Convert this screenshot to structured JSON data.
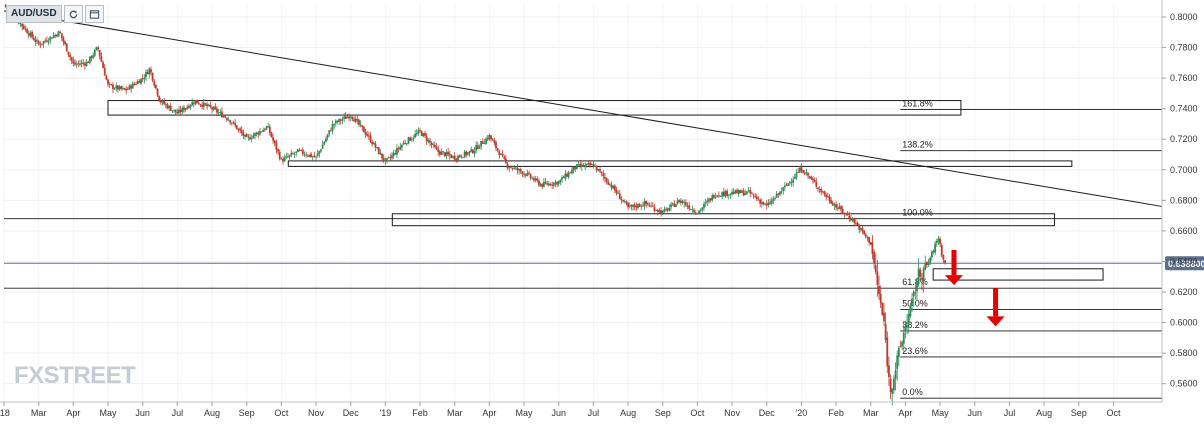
{
  "symbol": "AUD/USD",
  "toolbar": {
    "refresh_icon": "refresh-icon",
    "fullscreen_icon": "fullscreen-icon"
  },
  "brand": "FXSTREET",
  "current_price_label": "0.638800",
  "colors": {
    "up": "#2e8b57",
    "down": "#c0392b",
    "arrow": "#e60000",
    "lines": "#1a1a1a",
    "price_line": "#5a6f8c",
    "price_tag": "#5a6f8c"
  },
  "chart_data": {
    "type": "candlestick",
    "title": "AUD/USD",
    "y_range": [
      0.548,
      0.8085
    ],
    "y_ticks": [
      0.56,
      0.58,
      0.6,
      0.62,
      0.64,
      0.66,
      0.68,
      0.7,
      0.72,
      0.74,
      0.76,
      0.78,
      0.8
    ],
    "y_tick_labels": [
      "0.5600",
      "0.5800",
      "0.6000",
      "0.6200",
      "0.6400",
      "0.6600",
      "0.6800",
      "0.7000",
      "0.7200",
      "0.7400",
      "0.7600",
      "0.7800",
      "0.8000"
    ],
    "x_range_months": [
      0,
      33.4
    ],
    "x_ticks": [
      {
        "label": "'18",
        "m": 0
      },
      {
        "label": "Mar",
        "m": 1
      },
      {
        "label": "Apr",
        "m": 2
      },
      {
        "label": "May",
        "m": 3
      },
      {
        "label": "Jun",
        "m": 4
      },
      {
        "label": "Jul",
        "m": 5
      },
      {
        "label": "Aug",
        "m": 6
      },
      {
        "label": "Sep",
        "m": 7
      },
      {
        "label": "Oct",
        "m": 8
      },
      {
        "label": "Nov",
        "m": 9
      },
      {
        "label": "Dec",
        "m": 10
      },
      {
        "label": "'19",
        "m": 11
      },
      {
        "label": "Feb",
        "m": 12
      },
      {
        "label": "Mar",
        "m": 13
      },
      {
        "label": "Apr",
        "m": 14
      },
      {
        "label": "May",
        "m": 15
      },
      {
        "label": "Jun",
        "m": 16
      },
      {
        "label": "Jul",
        "m": 17
      },
      {
        "label": "Aug",
        "m": 18
      },
      {
        "label": "Sep",
        "m": 19
      },
      {
        "label": "Oct",
        "m": 20
      },
      {
        "label": "Nov",
        "m": 21
      },
      {
        "label": "Dec",
        "m": 22
      },
      {
        "label": "'20",
        "m": 23
      },
      {
        "label": "Feb",
        "m": 24
      },
      {
        "label": "Mar",
        "m": 25
      },
      {
        "label": "Apr",
        "m": 26
      },
      {
        "label": "May",
        "m": 27
      },
      {
        "label": "Jun",
        "m": 28
      },
      {
        "label": "Jul",
        "m": 29
      },
      {
        "label": "Aug",
        "m": 30
      },
      {
        "label": "Sep",
        "m": 31
      },
      {
        "label": "Oct",
        "m": 32
      }
    ],
    "price_path": [
      [
        0.0,
        0.808
      ],
      [
        0.5,
        0.795
      ],
      [
        1.0,
        0.782
      ],
      [
        1.6,
        0.79
      ],
      [
        2.0,
        0.769
      ],
      [
        2.4,
        0.77
      ],
      [
        2.7,
        0.78
      ],
      [
        3.0,
        0.755
      ],
      [
        3.5,
        0.752
      ],
      [
        4.0,
        0.76
      ],
      [
        4.2,
        0.766
      ],
      [
        4.5,
        0.745
      ],
      [
        5.0,
        0.737
      ],
      [
        5.5,
        0.745
      ],
      [
        6.0,
        0.74
      ],
      [
        6.5,
        0.733
      ],
      [
        7.0,
        0.72
      ],
      [
        7.6,
        0.728
      ],
      [
        8.0,
        0.706
      ],
      [
        8.5,
        0.712
      ],
      [
        9.0,
        0.708
      ],
      [
        9.5,
        0.73
      ],
      [
        10.0,
        0.736
      ],
      [
        10.5,
        0.722
      ],
      [
        11.0,
        0.705
      ],
      [
        11.15,
        0.708
      ],
      [
        11.5,
        0.717
      ],
      [
        12.0,
        0.725
      ],
      [
        12.5,
        0.712
      ],
      [
        13.0,
        0.708
      ],
      [
        13.5,
        0.712
      ],
      [
        14.0,
        0.722
      ],
      [
        14.5,
        0.703
      ],
      [
        15.0,
        0.698
      ],
      [
        15.5,
        0.69
      ],
      [
        16.0,
        0.692
      ],
      [
        16.5,
        0.702
      ],
      [
        17.0,
        0.703
      ],
      [
        17.5,
        0.69
      ],
      [
        18.0,
        0.675
      ],
      [
        18.5,
        0.678
      ],
      [
        19.0,
        0.672
      ],
      [
        19.5,
        0.68
      ],
      [
        20.0,
        0.672
      ],
      [
        20.5,
        0.684
      ],
      [
        21.0,
        0.685
      ],
      [
        21.5,
        0.685
      ],
      [
        22.0,
        0.676
      ],
      [
        22.5,
        0.688
      ],
      [
        23.0,
        0.701
      ],
      [
        23.5,
        0.688
      ],
      [
        24.0,
        0.676
      ],
      [
        24.5,
        0.667
      ],
      [
        25.0,
        0.652
      ],
      [
        25.15,
        0.63
      ],
      [
        25.4,
        0.596
      ],
      [
        25.55,
        0.555
      ],
      [
        25.8,
        0.578
      ],
      [
        26.0,
        0.598
      ],
      [
        26.2,
        0.612
      ],
      [
        26.35,
        0.63
      ],
      [
        26.6,
        0.636
      ],
      [
        26.8,
        0.647
      ],
      [
        26.95,
        0.656
      ],
      [
        27.1,
        0.64
      ],
      [
        27.15,
        0.639
      ]
    ],
    "trendline": [
      {
        "m": 0.0,
        "y": 0.804
      },
      {
        "m": 33.4,
        "y": 0.676
      }
    ],
    "fib_levels": [
      {
        "label": "161.8%",
        "y": 0.7395
      },
      {
        "label": "138.2%",
        "y": 0.7125
      },
      {
        "label": "100.0%",
        "y": 0.668
      },
      {
        "label": "61.8%",
        "y": 0.6225
      },
      {
        "label": "50.0%",
        "y": 0.6085
      },
      {
        "label": "38.2%",
        "y": 0.5945
      },
      {
        "label": "23.6%",
        "y": 0.5775
      },
      {
        "label": "0.0%",
        "y": 0.5505
      }
    ],
    "fib_start_m": 25.85,
    "zones": [
      {
        "m1": 3.0,
        "m2": 27.6,
        "y1": 0.7453,
        "y2": 0.7358
      },
      {
        "m1": 8.2,
        "m2": 30.8,
        "y1": 0.7058,
        "y2": 0.7022
      },
      {
        "m1": 11.2,
        "m2": 30.3,
        "y1": 0.6712,
        "y2": 0.6634
      },
      {
        "m1": 26.8,
        "m2": 31.7,
        "y1": 0.6352,
        "y2": 0.6278
      }
    ],
    "current_price": 0.6388,
    "arrows": [
      {
        "m": 27.4,
        "y_top": 0.6475,
        "y_tip": 0.6245
      },
      {
        "m": 28.6,
        "y_top": 0.6225,
        "y_tip": 0.5975
      }
    ]
  }
}
